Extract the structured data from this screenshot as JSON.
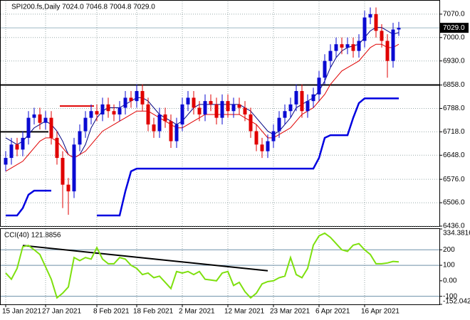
{
  "chart_data": {
    "type": "candlestick",
    "title": "SPI200.fs,Daily  7024.0 7046.8 7004.8 7029.0",
    "categories": [
      "15 Jan 2021",
      null,
      null,
      null,
      null,
      null,
      null,
      "27 Jan 2021",
      null,
      null,
      null,
      null,
      null,
      null,
      null,
      null,
      "8 Feb 2021",
      null,
      null,
      null,
      null,
      null,
      null,
      "18 Feb 2021",
      null,
      null,
      null,
      null,
      null,
      null,
      null,
      "2 Mar 2021",
      null,
      null,
      null,
      null,
      null,
      null,
      null,
      "12 Mar 2021",
      null,
      null,
      null,
      null,
      null,
      null,
      null,
      "23 Mar 2021",
      null,
      null,
      null,
      null,
      null,
      null,
      null,
      "6 Apr 2021",
      null,
      null,
      null,
      null,
      null,
      null,
      null,
      "16 Apr 2021",
      null,
      null,
      null,
      null,
      null,
      null
    ],
    "opens": [
      6620,
      6640,
      6680,
      6665,
      6700,
      6760,
      6770,
      6745,
      6760,
      6700,
      6640,
      6560,
      6540,
      6680,
      6720,
      6760,
      6780,
      6770,
      6800,
      6780,
      6770,
      6790,
      6820,
      6810,
      6840,
      6800,
      6740,
      6720,
      6770,
      6750,
      6690,
      6740,
      6800,
      6820,
      6790,
      6770,
      6810,
      6800,
      6760,
      6810,
      6780,
      6800,
      6790,
      6770,
      6720,
      6680,
      6660,
      6690,
      6720,
      6760,
      6780,
      6800,
      6840,
      6780,
      6810,
      6830,
      6880,
      6930,
      6960,
      6980,
      6970,
      6980,
      6960,
      6990,
      7060,
      7070,
      7020,
      6990,
      6930,
      7024
    ],
    "highs": [
      6660,
      6700,
      6700,
      6720,
      6780,
      6790,
      6790,
      6780,
      6780,
      6720,
      6660,
      6580,
      6700,
      6740,
      6780,
      6800,
      6800,
      6820,
      6820,
      6800,
      6810,
      6840,
      6840,
      6860,
      6860,
      6820,
      6760,
      6790,
      6790,
      6770,
      6760,
      6820,
      6840,
      6840,
      6810,
      6830,
      6830,
      6820,
      6830,
      6830,
      6820,
      6820,
      6810,
      6790,
      6740,
      6700,
      6710,
      6740,
      6780,
      6800,
      6820,
      6860,
      6860,
      6830,
      6850,
      6900,
      6950,
      6980,
      7000,
      7000,
      7000,
      7000,
      7010,
      7080,
      7090,
      7090,
      7040,
      7010,
      7044,
      7046.8
    ],
    "lows": [
      6600,
      6620,
      6645,
      6645,
      6680,
      6740,
      6725,
      6725,
      6680,
      6620,
      6490,
      6470,
      6520,
      6660,
      6700,
      6740,
      6750,
      6750,
      6760,
      6750,
      6750,
      6770,
      6790,
      6790,
      6780,
      6720,
      6700,
      6700,
      6730,
      6670,
      6670,
      6720,
      6780,
      6770,
      6750,
      6750,
      6780,
      6740,
      6740,
      6760,
      6760,
      6770,
      6750,
      6700,
      6660,
      6640,
      6640,
      6670,
      6700,
      6740,
      6760,
      6780,
      6760,
      6760,
      6790,
      6810,
      6860,
      6910,
      6940,
      6950,
      6950,
      6940,
      6940,
      6970,
      7040,
      7000,
      6970,
      6880,
      6910,
      7004.8
    ],
    "closes": [
      6640,
      6680,
      6665,
      6700,
      6760,
      6770,
      6745,
      6760,
      6700,
      6640,
      6560,
      6540,
      6680,
      6720,
      6760,
      6780,
      6770,
      6800,
      6780,
      6770,
      6790,
      6820,
      6810,
      6840,
      6800,
      6740,
      6720,
      6770,
      6750,
      6690,
      6740,
      6800,
      6820,
      6790,
      6770,
      6810,
      6800,
      6760,
      6810,
      6780,
      6800,
      6790,
      6770,
      6720,
      6680,
      6660,
      6690,
      6720,
      6760,
      6780,
      6800,
      6840,
      6780,
      6810,
      6830,
      6880,
      6930,
      6960,
      6980,
      6970,
      6980,
      6960,
      6990,
      7060,
      7070,
      7020,
      6990,
      6930,
      7024,
      7029
    ],
    "up_color": "#0a0ad2",
    "down_color": "#e00000",
    "ylim": [
      6436,
      7108
    ],
    "yticks": [
      {
        "value": 7070,
        "label": "7070.0"
      },
      {
        "value": 7000,
        "label": "7000.0"
      },
      {
        "value": 6930,
        "label": "6930.0"
      },
      {
        "value": 6858,
        "label": "6858.0"
      },
      {
        "value": 6788,
        "label": "6788.0"
      },
      {
        "value": 6718,
        "label": "6718.0"
      },
      {
        "value": 6648,
        "label": "6648.0"
      },
      {
        "value": 6576,
        "label": "6576.0"
      },
      {
        "value": 6506,
        "label": "6506.0"
      },
      {
        "value": 6436,
        "label": "6436.0"
      }
    ],
    "grid": true,
    "overlays": [
      {
        "color": "#000080",
        "width": 1,
        "values": [
          6700,
          6690,
          6680,
          6690,
          6710,
          6730,
          6740,
          6750,
          6740,
          6720,
          6690,
          6650,
          6640,
          6650,
          6680,
          6730,
          6760,
          6780,
          6790,
          6790,
          6790,
          6800,
          6810,
          6820,
          6820,
          6810,
          6790,
          6770,
          6760,
          6750,
          6740,
          6750,
          6770,
          6790,
          6800,
          6800,
          6800,
          6800,
          6800,
          6800,
          6800,
          6800,
          6790,
          6780,
          6760,
          6740,
          6720,
          6710,
          6720,
          6740,
          6760,
          6790,
          6800,
          6810,
          6820,
          6840,
          6870,
          6910,
          6940,
          6960,
          6970,
          6975,
          6980,
          7000,
          7020,
          7030,
          7030,
          7020,
          7010,
          7015
        ]
      },
      {
        "color": "#e00000",
        "width": 1,
        "values": [
          6600,
          6610,
          6620,
          6630,
          6650,
          6670,
          6690,
          6700,
          6700,
          6690,
          6670,
          6650,
          6640,
          6650,
          6660,
          6680,
          6700,
          6720,
          6730,
          6740,
          6750,
          6760,
          6770,
          6780,
          6780,
          6780,
          6770,
          6760,
          6750,
          6740,
          6730,
          6730,
          6740,
          6750,
          6760,
          6770,
          6770,
          6770,
          6770,
          6770,
          6770,
          6770,
          6760,
          6750,
          6740,
          6720,
          6700,
          6700,
          6710,
          6720,
          6730,
          6750,
          6770,
          6780,
          6790,
          6810,
          6830,
          6860,
          6880,
          6900,
          6910,
          6920,
          6930,
          6950,
          6970,
          6980,
          6980,
          6970,
          6970,
          6980
        ]
      },
      {
        "color": "#0000e0",
        "width": 2.5,
        "values": [
          6468,
          6468,
          6468,
          6490,
          6530,
          6542,
          6542,
          6542,
          6542,
          null,
          null,
          null,
          null,
          null,
          null,
          null,
          6468,
          6468,
          6468,
          6468,
          6468,
          6540,
          6600,
          6608,
          6608,
          6608,
          6608,
          6608,
          6608,
          6608,
          6608,
          6608,
          6608,
          6608,
          6608,
          6608,
          6608,
          6608,
          6608,
          6608,
          6608,
          6608,
          6608,
          6608,
          6608,
          6608,
          6608,
          6608,
          6608,
          6608,
          6608,
          6608,
          6608,
          6608,
          6608,
          6640,
          6700,
          6708,
          6708,
          6708,
          6708,
          6760,
          6804,
          6818,
          6818,
          6818,
          6818,
          6818,
          6818,
          6818
        ]
      }
    ],
    "levels": [
      {
        "value": 6858,
        "color": "#000000",
        "start": 0,
        "end": 69
      },
      {
        "value": 6718,
        "color": "#000000",
        "start": 0,
        "end": 7
      },
      {
        "value": 6795,
        "color": "#e00000",
        "start": 10,
        "end": 15
      }
    ],
    "last_price": {
      "value": 7029,
      "label": "7029.0"
    },
    "indicator": {
      "label": "CCI(40) 121.8856",
      "color": "#7ee00e",
      "values": [
        50,
        10,
        80,
        220,
        228,
        200,
        170,
        90,
        10,
        -110,
        -80,
        -40,
        150,
        130,
        150,
        140,
        214,
        140,
        110,
        110,
        150,
        140,
        100,
        80,
        40,
        50,
        20,
        30,
        -10,
        -50,
        60,
        50,
        60,
        40,
        60,
        10,
        5,
        0,
        50,
        60,
        -30,
        -10,
        -70,
        -110,
        -80,
        -20,
        -5,
        0,
        20,
        30,
        150,
        40,
        20,
        80,
        230,
        290,
        307,
        280,
        240,
        200,
        190,
        230,
        240,
        200,
        170,
        110,
        110,
        115,
        125,
        121.8856
      ],
      "ylim": [
        -152.042,
        334.3816
      ],
      "yticks": [
        334.3816,
        200,
        100,
        {
          "value": 0,
          "label": "0.00"
        },
        -100,
        -152.042
      ],
      "levels": [
        200,
        100,
        -100
      ],
      "level_color": "#6d8fa8",
      "trendline": {
        "x": [
          3,
          46
        ],
        "values": [
          228,
          65
        ],
        "color": "#000000"
      }
    }
  }
}
